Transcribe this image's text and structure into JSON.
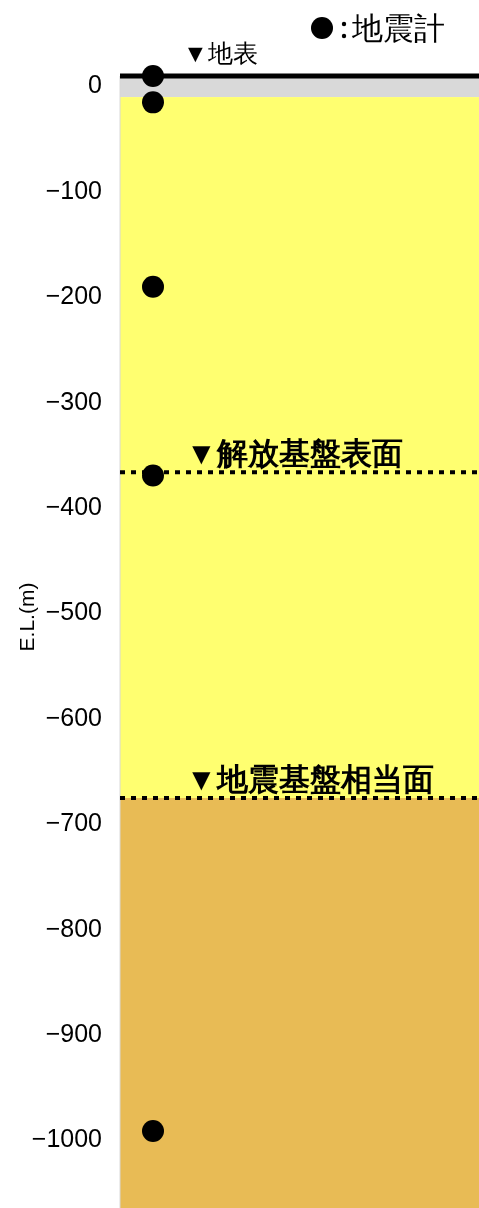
{
  "chart_data": {
    "type": "scatter",
    "ylabel": "E.L.(m)",
    "ylim": [
      -1066,
      8
    ],
    "yticks": [
      0,
      {
        "value": -100,
        "label": "−100"
      },
      {
        "value": -200,
        "label": "−200"
      },
      {
        "value": -300,
        "label": "−300"
      },
      {
        "value": -400,
        "label": "−400"
      },
      {
        "value": -500,
        "label": "−500"
      },
      {
        "value": -600,
        "label": "−600"
      },
      {
        "value": -700,
        "label": "−700"
      },
      {
        "value": -800,
        "label": "−800"
      },
      {
        "value": -900,
        "label": "−900"
      },
      {
        "value": -1000,
        "label": "−1000"
      }
    ],
    "tick_labels": "y",
    "grid": false,
    "legend": "top right",
    "marker": "circle",
    "categories": [
      null
    ],
    "series": [
      {
        "name": "地震計",
        "color": "#000000",
        "x": [
          null,
          null,
          null,
          null,
          null
        ],
        "values": [
          8,
          -17,
          -192,
          -371,
          -993
        ]
      }
    ],
    "bands": [
      {
        "axis": "y",
        "from": 8,
        "to": -12,
        "color": "#d9d9d9"
      },
      {
        "axis": "y",
        "from": -12,
        "to": -677,
        "color": "#ffff70"
      },
      {
        "axis": "y",
        "from": -677,
        "to": -1066,
        "color": "#e8bb55"
      }
    ],
    "ref_lines": [
      {
        "axis": "y",
        "value": 8,
        "label": "▼地表",
        "color": "#000000",
        "line_style": "solid"
      },
      {
        "axis": "y",
        "value": -368,
        "label": "▼解放基盤表面",
        "color": "#000000",
        "line_style": "dotted"
      },
      {
        "axis": "y",
        "value": -677,
        "label": "▼地震基盤相当面",
        "color": "#000000",
        "line_style": "dotted"
      }
    ]
  }
}
